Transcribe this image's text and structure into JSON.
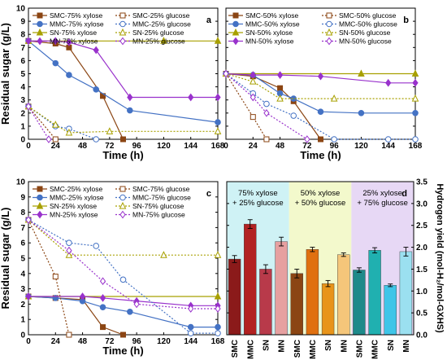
{
  "figure": {
    "panels": [
      {
        "id": "a",
        "label": "a"
      },
      {
        "id": "b",
        "label": "b"
      },
      {
        "id": "c",
        "label": "c"
      },
      {
        "id": "d",
        "label": "d"
      }
    ]
  },
  "chart_data": [
    {
      "panel": "a",
      "type": "line",
      "xlabel": "Time (h)",
      "ylabel": "Residual sugar (g/L)",
      "xlim": [
        0,
        168
      ],
      "ylim": [
        0,
        10
      ],
      "xticks": [
        0,
        24,
        48,
        72,
        96,
        120,
        144,
        168
      ],
      "yticks": [
        0,
        1,
        2,
        3,
        4,
        5,
        6,
        7,
        8,
        9,
        10
      ],
      "legend_position": "top-left",
      "series": [
        {
          "name": "SMC-75% xylose",
          "color": "#8B4513",
          "marker": "square",
          "filled": true,
          "dashed": false,
          "x": [
            0,
            24,
            36,
            66,
            84
          ],
          "y": [
            7.5,
            7.3,
            7.0,
            3.3,
            0
          ]
        },
        {
          "name": "MMC-75% xylose",
          "color": "#4472C4",
          "marker": "circle",
          "filled": true,
          "dashed": false,
          "x": [
            0,
            24,
            36,
            60,
            90,
            168
          ],
          "y": [
            7.5,
            5.8,
            4.9,
            3.8,
            2.2,
            1.3
          ]
        },
        {
          "name": "SN-75% xylose",
          "color": "#A8A000",
          "marker": "triangle",
          "filled": true,
          "dashed": false,
          "x": [
            0,
            120,
            168
          ],
          "y": [
            7.5,
            7.5,
            7.5
          ]
        },
        {
          "name": "MN-75% xylose",
          "color": "#9932CC",
          "marker": "diamond",
          "filled": true,
          "dashed": false,
          "x": [
            0,
            24,
            36,
            60,
            90,
            144,
            168
          ],
          "y": [
            7.5,
            7.5,
            7.4,
            6.8,
            3.2,
            3.2,
            3.2
          ]
        },
        {
          "name": "SMC-25% glucose",
          "color": "#8B4513",
          "marker": "square",
          "filled": false,
          "dashed": true,
          "x": [
            0,
            24
          ],
          "y": [
            2.5,
            0
          ]
        },
        {
          "name": "MMC-25% glucose",
          "color": "#4472C4",
          "marker": "circle",
          "filled": false,
          "dashed": true,
          "x": [
            0,
            24,
            36,
            60
          ],
          "y": [
            2.5,
            1.0,
            0.8,
            0
          ]
        },
        {
          "name": "SN-25% glucose",
          "color": "#A8A000",
          "marker": "triangle",
          "filled": false,
          "dashed": true,
          "x": [
            0,
            24,
            36,
            72,
            168
          ],
          "y": [
            2.5,
            1.1,
            0.5,
            0.6,
            0.6
          ]
        },
        {
          "name": "MN-25% glucose",
          "color": "#9932CC",
          "marker": "diamond",
          "filled": false,
          "dashed": true,
          "x": [
            0,
            18
          ],
          "y": [
            2.5,
            0
          ]
        }
      ]
    },
    {
      "panel": "b",
      "type": "line",
      "xlabel": "Time (h)",
      "ylabel": "",
      "xlim": [
        0,
        168
      ],
      "ylim": [
        0,
        10
      ],
      "xticks": [
        0,
        24,
        48,
        72,
        96,
        120,
        144,
        168
      ],
      "yticks": [
        0,
        1,
        2,
        3,
        4,
        5,
        6,
        7,
        8,
        9,
        10
      ],
      "legend_position": "top",
      "series": [
        {
          "name": "SMC-50% xylose",
          "color": "#8B4513",
          "marker": "square",
          "filled": true,
          "dashed": false,
          "x": [
            0,
            24,
            48,
            60,
            84
          ],
          "y": [
            5.0,
            4.8,
            3.9,
            2.9,
            0
          ]
        },
        {
          "name": "MMC-50% xylose",
          "color": "#4472C4",
          "marker": "circle",
          "filled": true,
          "dashed": false,
          "x": [
            0,
            24,
            48,
            60,
            84,
            120,
            168
          ],
          "y": [
            5.0,
            4.9,
            3.5,
            3.1,
            2.1,
            2.0,
            2.0
          ]
        },
        {
          "name": "SN-50% xylose",
          "color": "#A8A000",
          "marker": "triangle",
          "filled": true,
          "dashed": false,
          "x": [
            0,
            120,
            168
          ],
          "y": [
            5.0,
            5.0,
            5.0
          ]
        },
        {
          "name": "MN-50% xylose",
          "color": "#9932CC",
          "marker": "diamond",
          "filled": true,
          "dashed": false,
          "x": [
            0,
            24,
            48,
            84,
            144,
            168
          ],
          "y": [
            5.0,
            4.9,
            4.9,
            4.8,
            4.3,
            4.3
          ]
        },
        {
          "name": "SMC-50% glucose",
          "color": "#8B4513",
          "marker": "square",
          "filled": false,
          "dashed": true,
          "x": [
            0,
            24,
            36
          ],
          "y": [
            5.0,
            1.7,
            0
          ]
        },
        {
          "name": "MMC-50% glucose",
          "color": "#4472C4",
          "marker": "circle",
          "filled": false,
          "dashed": true,
          "x": [
            0,
            24,
            36,
            60,
            96,
            144,
            168
          ],
          "y": [
            5.0,
            3.5,
            2.7,
            1.8,
            0,
            0,
            0
          ]
        },
        {
          "name": "SN-50% glucose",
          "color": "#A8A000",
          "marker": "triangle",
          "filled": false,
          "dashed": true,
          "x": [
            0,
            24,
            48,
            96,
            168
          ],
          "y": [
            5.0,
            4.4,
            3.1,
            3.1,
            3.1
          ]
        },
        {
          "name": "MN-50% glucose",
          "color": "#9932CC",
          "marker": "diamond",
          "filled": false,
          "dashed": true,
          "x": [
            0,
            24,
            36,
            72
          ],
          "y": [
            5.0,
            3.2,
            2.0,
            0
          ]
        }
      ]
    },
    {
      "panel": "c",
      "type": "line",
      "xlabel": "Time (h)",
      "ylabel": "Residual sugar (g/L)",
      "xlim": [
        0,
        168
      ],
      "ylim": [
        0,
        10
      ],
      "xticks": [
        0,
        24,
        48,
        72,
        96,
        120,
        144,
        168
      ],
      "yticks": [
        0,
        1,
        2,
        3,
        4,
        5,
        6,
        7,
        8,
        9,
        10
      ],
      "legend_position": "top-left",
      "series": [
        {
          "name": "SMC-25% xylose",
          "color": "#8B4513",
          "marker": "square",
          "filled": true,
          "dashed": false,
          "x": [
            0,
            24,
            48,
            66,
            84
          ],
          "y": [
            2.5,
            2.4,
            2.3,
            0.5,
            0
          ]
        },
        {
          "name": "MMC-25% xylose",
          "color": "#4472C4",
          "marker": "circle",
          "filled": true,
          "dashed": false,
          "x": [
            0,
            24,
            48,
            66,
            90,
            144,
            168
          ],
          "y": [
            2.5,
            2.4,
            2.2,
            1.8,
            1.5,
            0.5,
            0.5
          ]
        },
        {
          "name": "SN-25% xylose",
          "color": "#A8A000",
          "marker": "triangle",
          "filled": true,
          "dashed": false,
          "x": [
            0,
            168
          ],
          "y": [
            2.5,
            2.5
          ]
        },
        {
          "name": "MN-25% xylose",
          "color": "#9932CC",
          "marker": "diamond",
          "filled": true,
          "dashed": false,
          "x": [
            0,
            48,
            66,
            96,
            144,
            168
          ],
          "y": [
            2.5,
            2.5,
            2.4,
            2.2,
            1.9,
            1.9
          ]
        },
        {
          "name": "SMC-75% glucose",
          "color": "#8B4513",
          "marker": "square",
          "filled": false,
          "dashed": true,
          "x": [
            0,
            24,
            36
          ],
          "y": [
            7.5,
            3.8,
            0
          ]
        },
        {
          "name": "MMC-75% glucose",
          "color": "#4472C4",
          "marker": "circle",
          "filled": false,
          "dashed": true,
          "x": [
            0,
            36,
            60,
            84,
            144,
            168
          ],
          "y": [
            7.5,
            6.0,
            5.8,
            3.6,
            0.1,
            0.1
          ]
        },
        {
          "name": "SN-75% glucose",
          "color": "#A8A000",
          "marker": "triangle",
          "filled": false,
          "dashed": true,
          "x": [
            0,
            36,
            120,
            168
          ],
          "y": [
            7.5,
            5.2,
            5.2,
            5.2
          ]
        },
        {
          "name": "MN-75% glucose",
          "color": "#9932CC",
          "marker": "diamond",
          "filled": false,
          "dashed": true,
          "x": [
            0,
            36,
            66,
            96,
            144,
            168
          ],
          "y": [
            7.5,
            5.5,
            3.5,
            2.0,
            1.7,
            1.7
          ]
        }
      ]
    },
    {
      "panel": "d",
      "type": "bar",
      "ylabel": "Hydrogen yield (mol-H₂/mol-GXHS)",
      "ylim": [
        0,
        3.5
      ],
      "yticks": [
        0.0,
        0.5,
        1.0,
        1.5,
        2.0,
        2.5,
        3.0,
        3.5
      ],
      "y_axis_side": "right",
      "groups": [
        {
          "label_top": "75% xylose",
          "label_bottom": "+ 25% glucose",
          "background": "#CFF2F5",
          "categories": [
            "SMC",
            "MMC",
            "SN",
            "MN"
          ],
          "values": [
            1.73,
            2.53,
            1.5,
            2.13
          ],
          "errors": [
            0.08,
            0.1,
            0.1,
            0.1
          ],
          "colors": [
            "#8B1A1A",
            "#B22222",
            "#B83A4A",
            "#E6A0A0"
          ]
        },
        {
          "label_top": "50% xylose",
          "label_bottom": "+ 50% glucose",
          "background": "#F3F9CC",
          "categories": [
            "SMC",
            "MMC",
            "SN",
            "MN"
          ],
          "values": [
            1.4,
            1.95,
            1.17,
            1.83
          ],
          "errors": [
            0.1,
            0.05,
            0.07,
            0.04
          ],
          "colors": [
            "#8B4513",
            "#E07010",
            "#E8941A",
            "#F5C67A"
          ]
        },
        {
          "label_top": "25% xylose",
          "label_bottom": "+ 75% glucose",
          "background": "#E7D8F5",
          "categories": [
            "SMC",
            "MMC",
            "SN",
            "MN"
          ],
          "values": [
            1.48,
            1.93,
            1.13,
            1.9
          ],
          "errors": [
            0.05,
            0.06,
            0.03,
            0.1
          ],
          "colors": [
            "#1E8A8A",
            "#20B0B0",
            "#3FC5E8",
            "#9BE0F0"
          ]
        }
      ]
    }
  ]
}
